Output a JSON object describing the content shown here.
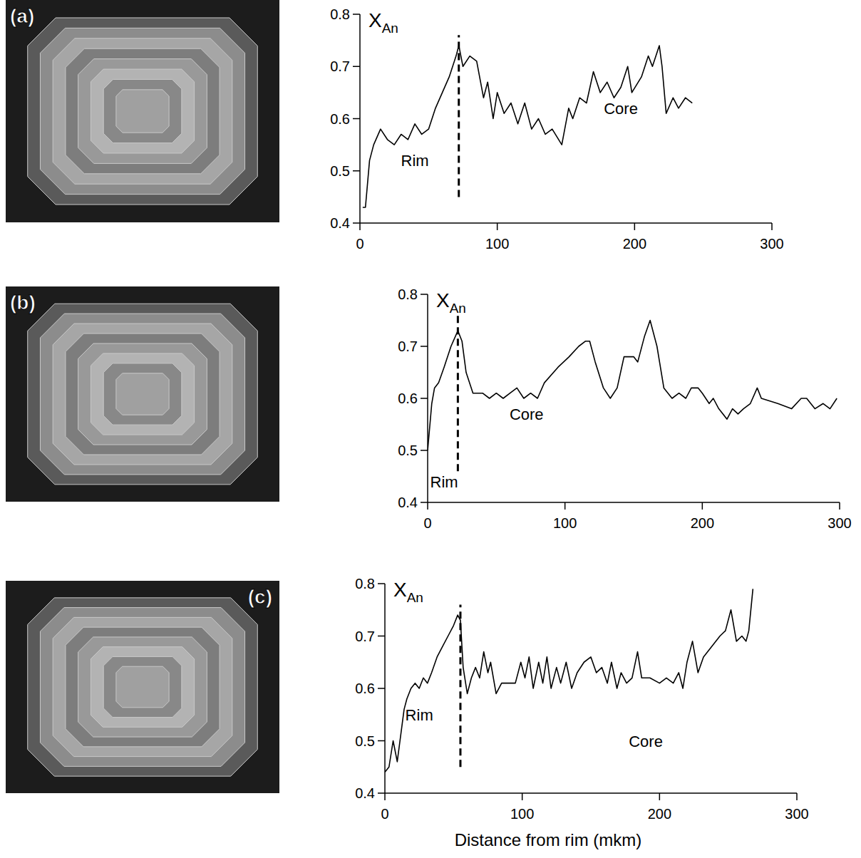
{
  "chart_data": [
    {
      "type": "line",
      "panel": "(a)",
      "color": "#000000",
      "y_label": "X",
      "y_label_subscript": "An",
      "xlim": [
        0,
        300
      ],
      "xticks": [
        0,
        100,
        200,
        300
      ],
      "ylim": [
        0.4,
        0.8
      ],
      "yticks": [
        0.4,
        0.5,
        0.6,
        0.7,
        0.8
      ],
      "x": [
        2,
        4,
        7,
        10,
        15,
        20,
        25,
        30,
        35,
        40,
        45,
        50,
        55,
        60,
        65,
        70,
        72,
        75,
        80,
        85,
        90,
        93,
        97,
        100,
        105,
        110,
        115,
        120,
        125,
        130,
        135,
        140,
        147,
        152,
        155,
        160,
        165,
        170,
        175,
        180,
        185,
        190,
        195,
        198,
        205,
        210,
        213,
        218,
        220,
        223,
        228,
        232,
        237,
        242
      ],
      "values": [
        0.43,
        0.43,
        0.52,
        0.55,
        0.58,
        0.56,
        0.55,
        0.57,
        0.56,
        0.59,
        0.57,
        0.58,
        0.62,
        0.65,
        0.68,
        0.72,
        0.74,
        0.7,
        0.72,
        0.71,
        0.64,
        0.67,
        0.6,
        0.65,
        0.61,
        0.63,
        0.59,
        0.63,
        0.58,
        0.6,
        0.57,
        0.58,
        0.55,
        0.62,
        0.6,
        0.64,
        0.63,
        0.69,
        0.65,
        0.67,
        0.64,
        0.66,
        0.7,
        0.65,
        0.68,
        0.72,
        0.7,
        0.74,
        0.7,
        0.61,
        0.64,
        0.62,
        0.64,
        0.63
      ],
      "boundary": {
        "x": 72,
        "y": [
          0.45,
          0.76
        ]
      },
      "annotations": [
        {
          "text": "Rim",
          "x": 40,
          "y": 0.52
        },
        {
          "text": "Core",
          "x": 190,
          "y": 0.62
        }
      ]
    },
    {
      "type": "line",
      "panel": "(b)",
      "color": "#000000",
      "y_label": "X",
      "y_label_subscript": "An",
      "xlim": [
        0,
        300
      ],
      "xticks": [
        0,
        100,
        200,
        300
      ],
      "ylim": [
        0.4,
        0.8
      ],
      "yticks": [
        0.4,
        0.5,
        0.6,
        0.7,
        0.8
      ],
      "x": [
        0,
        3,
        5,
        8,
        12,
        17,
        22,
        25,
        28,
        33,
        40,
        45,
        50,
        55,
        60,
        65,
        70,
        75,
        80,
        85,
        95,
        103,
        110,
        115,
        118,
        122,
        128,
        133,
        138,
        143,
        150,
        153,
        158,
        162,
        167,
        172,
        178,
        183,
        188,
        192,
        197,
        200,
        205,
        208,
        212,
        218,
        222,
        226,
        230,
        235,
        240,
        243,
        255,
        265,
        272,
        276,
        282,
        288,
        293,
        298
      ],
      "values": [
        0.5,
        0.59,
        0.62,
        0.63,
        0.66,
        0.7,
        0.73,
        0.71,
        0.65,
        0.61,
        0.61,
        0.6,
        0.61,
        0.6,
        0.61,
        0.62,
        0.6,
        0.61,
        0.6,
        0.63,
        0.66,
        0.68,
        0.7,
        0.71,
        0.71,
        0.67,
        0.62,
        0.6,
        0.62,
        0.68,
        0.68,
        0.67,
        0.72,
        0.75,
        0.7,
        0.62,
        0.6,
        0.61,
        0.6,
        0.62,
        0.62,
        0.61,
        0.59,
        0.6,
        0.58,
        0.56,
        0.58,
        0.57,
        0.58,
        0.59,
        0.62,
        0.6,
        0.59,
        0.58,
        0.6,
        0.6,
        0.58,
        0.59,
        0.58,
        0.6
      ],
      "boundary": {
        "x": 22,
        "y": [
          0.46,
          0.76
        ]
      },
      "annotations": [
        {
          "text": "Rim",
          "x": 12,
          "y": 0.44
        },
        {
          "text": "Core",
          "x": 72,
          "y": 0.57
        }
      ]
    },
    {
      "type": "line",
      "panel": "(c)",
      "color": "#000000",
      "y_label": "X",
      "y_label_subscript": "An",
      "x_label": "Distance from rim (mkm)",
      "xlim": [
        0,
        300
      ],
      "xticks": [
        0,
        100,
        200,
        300
      ],
      "ylim": [
        0.4,
        0.8
      ],
      "yticks": [
        0.4,
        0.5,
        0.6,
        0.7,
        0.8
      ],
      "x": [
        0,
        3,
        6,
        9,
        11,
        14,
        16,
        19,
        22,
        25,
        28,
        31,
        34,
        38,
        42,
        46,
        50,
        53,
        55,
        57,
        60,
        63,
        66,
        69,
        72,
        75,
        77,
        81,
        85,
        90,
        95,
        99,
        102,
        105,
        108,
        112,
        115,
        118,
        121,
        125,
        128,
        132,
        136,
        140,
        145,
        150,
        154,
        158,
        162,
        165,
        169,
        172,
        176,
        180,
        184,
        187,
        193,
        200,
        205,
        210,
        214,
        217,
        220,
        224,
        228,
        232,
        238,
        244,
        248,
        252,
        256,
        260,
        263,
        265,
        268
      ],
      "values": [
        0.44,
        0.45,
        0.5,
        0.46,
        0.5,
        0.56,
        0.58,
        0.6,
        0.61,
        0.6,
        0.62,
        0.61,
        0.63,
        0.66,
        0.68,
        0.7,
        0.72,
        0.74,
        0.73,
        0.64,
        0.59,
        0.62,
        0.64,
        0.62,
        0.67,
        0.63,
        0.65,
        0.59,
        0.61,
        0.61,
        0.61,
        0.65,
        0.62,
        0.66,
        0.6,
        0.65,
        0.61,
        0.66,
        0.6,
        0.64,
        0.61,
        0.65,
        0.6,
        0.63,
        0.65,
        0.66,
        0.63,
        0.64,
        0.61,
        0.65,
        0.6,
        0.63,
        0.61,
        0.62,
        0.67,
        0.62,
        0.62,
        0.61,
        0.62,
        0.61,
        0.63,
        0.6,
        0.65,
        0.69,
        0.63,
        0.66,
        0.68,
        0.7,
        0.71,
        0.75,
        0.69,
        0.7,
        0.69,
        0.71,
        0.79
      ],
      "boundary": {
        "x": 55,
        "y": [
          0.45,
          0.76
        ]
      },
      "annotations": [
        {
          "text": "Rim",
          "x": 25,
          "y": 0.55
        },
        {
          "text": "Core",
          "x": 190,
          "y": 0.5
        }
      ]
    }
  ]
}
